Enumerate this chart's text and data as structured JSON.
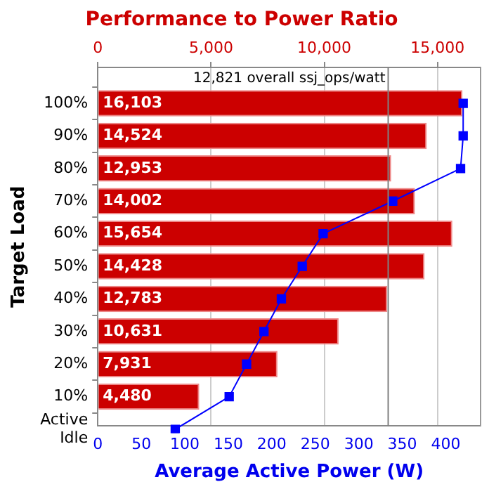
{
  "chart_data": {
    "type": "bar",
    "orientation": "horizontal",
    "title": "Performance to Power Ratio",
    "xlabel": "Average Active Power (W)",
    "ylabel": "Target Load",
    "categories": [
      "100%",
      "90%",
      "80%",
      "70%",
      "60%",
      "50%",
      "40%",
      "30%",
      "20%",
      "10%",
      "Active Idle"
    ],
    "series": [
      {
        "axis": "x2",
        "color": "#cc0000",
        "values": [
          16103,
          14524,
          12953,
          14002,
          15654,
          14428,
          12783,
          10631,
          7931,
          4480,
          null
        ],
        "value_labels": [
          "16,103",
          "14,524",
          "12,953",
          "14,002",
          "15,654",
          "14,428",
          "12,783",
          "10,631",
          "7,931",
          "4,480",
          null
        ]
      },
      {
        "type": "line",
        "color": "#0000ff",
        "marker": "square",
        "values": [
          420,
          420,
          417,
          339,
          259,
          235,
          211,
          191,
          171,
          151,
          89
        ]
      }
    ],
    "xlim": [
      0,
      440
    ],
    "xticks": [
      0,
      50,
      100,
      150,
      200,
      250,
      300,
      350,
      400
    ],
    "x2lim": [
      0,
      16900
    ],
    "x2ticks": [
      {
        "value": 0,
        "label": "0"
      },
      {
        "value": 5000,
        "label": "5,000"
      },
      {
        "value": 10000,
        "label": "10,000"
      },
      {
        "value": 15000,
        "label": "15,000"
      }
    ],
    "ref_lines": [
      {
        "axis": "x2",
        "value": 12821,
        "label": "12,821 overall ssj_ops/watt",
        "color": "#808080"
      }
    ],
    "grid": "x2",
    "legend": false
  }
}
